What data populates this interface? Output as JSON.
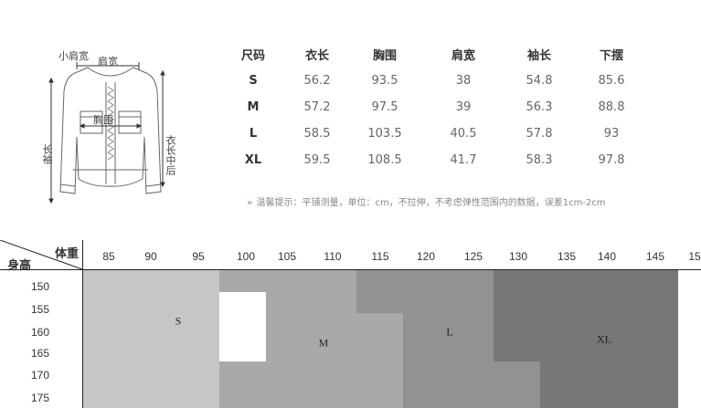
{
  "diagram": {
    "shoulder_small": "小肩宽",
    "shoulder": "肩宽",
    "chest": "胸围",
    "sleeve": "长袖",
    "length": "衣长中后"
  },
  "size_table": {
    "headers": [
      "尺码",
      "衣长",
      "胸围",
      "肩宽",
      "袖长",
      "下摆"
    ],
    "rows": [
      [
        "S",
        "56.2",
        "93.5",
        "38",
        "54.8",
        "85.6"
      ],
      [
        "M",
        "57.2",
        "97.5",
        "39",
        "56.3",
        "88.8"
      ],
      [
        "L",
        "58.5",
        "103.5",
        "40.5",
        "57.8",
        "93"
      ],
      [
        "XL",
        "59.5",
        "108.5",
        "41.7",
        "58.3",
        "97.8"
      ]
    ]
  },
  "tip": {
    "arrow": "»",
    "text": "温馨提示：平铺测量，单位：cm，不拉伸，不考虑弹性范围内的数据，误差1cm-2cm"
  },
  "chart": {
    "weight_label": "体重",
    "height_label": "身高",
    "weights": [
      "85",
      "90",
      "95",
      "100",
      "105",
      "110",
      "115",
      "120",
      "125",
      "130",
      "135",
      "140",
      "145",
      "15"
    ],
    "heights": [
      "150",
      "155",
      "160",
      "165",
      "170",
      "175"
    ],
    "zones": [
      {
        "label": "S",
        "color": "#c6c6c6"
      },
      {
        "label": "M",
        "color": "#a9a9a9"
      },
      {
        "label": "L",
        "color": "#929292"
      },
      {
        "label": "XL",
        "color": "#777777"
      }
    ]
  }
}
